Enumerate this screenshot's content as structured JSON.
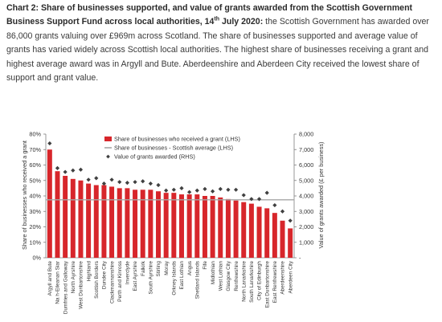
{
  "caption": {
    "bold_text": "Chart 2: Share of businesses supported, and value of grants awarded from the Scottish Government Business Support Fund across local authorities, 14",
    "bold_sup": "th",
    "bold_tail": " July 2020:",
    "body_text": " the Scottish Government has awarded over 86,000 grants valuing over £969m across Scotland. The share of businesses supported and average value of grants has varied widely across Scottish local authorities. The highest share of businesses receiving a grant and highest average award was in Argyll and Bute. Aberdeenshire and Aberdeen City received the lowest share of support and grant value."
  },
  "chart_data": {
    "type": "bar",
    "categories": [
      "Argyll and Bute",
      "Na h-Eileanan Siar",
      "Dumfries and Galloway",
      "North Ayrshire",
      "West Dunbartonshire",
      "Highland",
      "Scottish Borders",
      "Dundee City",
      "Clackmannanshire",
      "Perth and Kinross",
      "Inverclyde",
      "East Ayrshire",
      "Falkirk",
      "South Ayrshire",
      "Stirling",
      "Moray",
      "Orkney Islands",
      "East Lothian",
      "Angus",
      "Shetland Islands",
      "Fife",
      "Midlothian",
      "West Lothian",
      "Glasgow City",
      "Renfrewshire",
      "North Lanarkshire",
      "South Lanarkshire",
      "City of Edinburgh",
      "East Dunbartonshire",
      "East Renfrewshire",
      "Aberdeenshire",
      "Aberdeen City"
    ],
    "series": [
      {
        "name": "Share of businesses who received a grant (LHS)",
        "type": "bar",
        "axis": "left",
        "color": "#d7262b",
        "values": [
          70,
          56,
          53,
          51,
          50,
          48,
          47,
          47,
          46,
          45,
          45,
          44,
          44,
          44,
          43,
          42,
          42,
          41,
          41,
          41,
          40,
          40,
          39,
          38,
          37,
          36,
          35,
          33,
          32,
          29,
          24,
          19
        ]
      },
      {
        "name": "Share of businesses - Scottish average (LHS)",
        "type": "line",
        "axis": "left",
        "color": "#a6a6a6",
        "value": 37.5
      },
      {
        "name": "Value of grants awarded (RHS)",
        "type": "marker",
        "axis": "right",
        "color": "#404040",
        "values": [
          7400,
          5800,
          5550,
          5650,
          5700,
          5050,
          5150,
          4800,
          5050,
          4900,
          4850,
          4900,
          4950,
          4800,
          4700,
          4350,
          4400,
          4500,
          4250,
          4350,
          4450,
          4300,
          4450,
          4400,
          4400,
          4050,
          3800,
          3800,
          4200,
          3400,
          3000,
          2400
        ]
      }
    ],
    "ylabel_left": "Share of businesses who received a grant",
    "ylabel_right": "Value of grants awarded (£ per business)",
    "ylim_left": [
      0,
      80
    ],
    "ylim_right": [
      0,
      8000
    ],
    "yticks_left": [
      "0%",
      "10%",
      "20%",
      "30%",
      "40%",
      "50%",
      "60%",
      "70%",
      "80%"
    ],
    "yticks_right": [
      "-",
      "1,000",
      "2,000",
      "3,000",
      "4,000",
      "5,000",
      "6,000",
      "7,000",
      "8,000"
    ],
    "grid": false,
    "legend_position": "top-inside"
  }
}
